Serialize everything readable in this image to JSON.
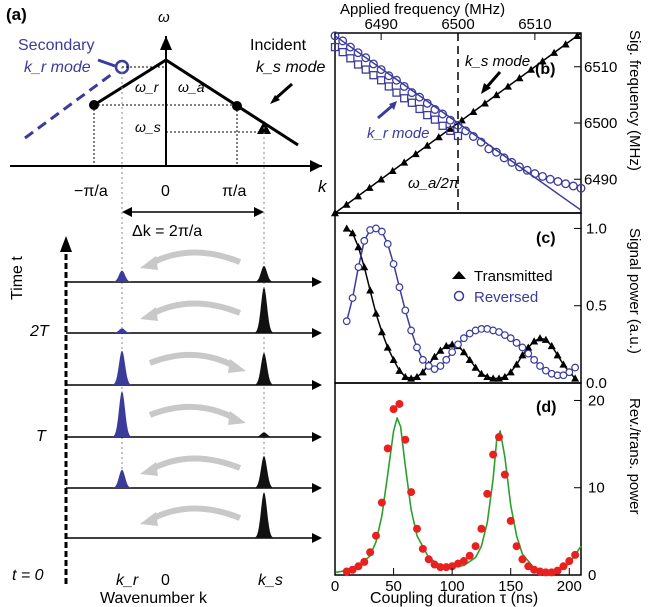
{
  "colors": {
    "blue": "#3b3b9c",
    "green": "#2ca02c",
    "red": "#e8201f",
    "black": "#000000",
    "gray_arrow": "#c8c8c8"
  },
  "panel_a": {
    "label": "(a)",
    "omega_axis": "ω",
    "k_axis": "k",
    "secondary_label_1": "Secondary",
    "secondary_label_2": "k_r mode",
    "incident_label_1": "Incident",
    "incident_label_2": "k_s mode",
    "omega_r": "ω_r",
    "omega_a": "ω_a",
    "omega_s": "ω_s",
    "tick_neg": "−π/a",
    "tick_zero": "0",
    "tick_pos": "π/a",
    "delta_k": "Δk = 2π/a",
    "time_axis": "Time t",
    "time_labels": [
      "2T",
      "T",
      "t = 0"
    ],
    "bottom_kr": "k_r",
    "bottom_zero": "0",
    "bottom_ks": "k_s",
    "bottom_axis": "Wavenumber k",
    "rows": [
      {
        "kr_amp": 0.25,
        "ks_amp": 0.35,
        "arrow": "left"
      },
      {
        "kr_amp": 0.1,
        "ks_amp": 1.0,
        "arrow": "left"
      },
      {
        "kr_amp": 0.75,
        "ks_amp": 0.7,
        "arrow": "right"
      },
      {
        "kr_amp": 1.0,
        "ks_amp": 0.1,
        "arrow": "right"
      },
      {
        "kr_amp": 0.4,
        "ks_amp": 0.7,
        "arrow": "left"
      },
      {
        "kr_amp": 0.0,
        "ks_amp": 1.0,
        "arrow": "left"
      }
    ]
  },
  "chart_data": [
    {
      "panel": "(b)",
      "type": "scatter",
      "top_xlabel": "Applied frequency (MHz)",
      "top_xticks": [
        6490,
        6500,
        6510
      ],
      "xlim": [
        6484,
        6516
      ],
      "ylabel": "Sig. frequency (MHz)",
      "yticks": [
        6490,
        6500,
        6510
      ],
      "ylim": [
        6484,
        6516
      ],
      "vline_x": 6500,
      "vline_label": "ω_a/2π",
      "annotations": [
        "k_s mode",
        "k_r mode"
      ],
      "series": [
        {
          "marker": "triangle",
          "color": "black",
          "x": [
            6484,
            6485.5,
            6487,
            6488.5,
            6490,
            6491.5,
            6493,
            6494.5,
            6496,
            6497.5,
            6499,
            6500.5,
            6502,
            6503.5,
            6505,
            6506.5,
            6508,
            6509.5,
            6511,
            6512.5,
            6514,
            6515.5
          ],
          "y": [
            6484,
            6485.5,
            6487,
            6488.5,
            6490,
            6491.5,
            6493,
            6494.5,
            6496,
            6497.5,
            6499,
            6500.5,
            6502,
            6503.5,
            6505,
            6506.5,
            6508,
            6509.5,
            6511,
            6512.5,
            6514,
            6515.5
          ]
        },
        {
          "marker": "square",
          "color": "blue",
          "x": [
            6484,
            6485,
            6486,
            6487,
            6488,
            6489,
            6490,
            6491,
            6492,
            6493,
            6494,
            6495,
            6496,
            6497,
            6498,
            6499,
            6500
          ],
          "y": [
            6513.5,
            6512.6,
            6511.5,
            6510.4,
            6509.5,
            6508.5,
            6507.6,
            6506.5,
            6505.4,
            6504.4,
            6503.6,
            6502.5,
            6501.4,
            6500.6,
            6499.5,
            6498.6,
            6497.7
          ]
        },
        {
          "marker": "circle",
          "color": "blue",
          "x": [
            6484,
            6485,
            6486,
            6487,
            6488,
            6489,
            6490,
            6491,
            6492,
            6493,
            6494,
            6495,
            6496,
            6497,
            6498,
            6499,
            6500,
            6501,
            6502,
            6503,
            6504,
            6505,
            6506,
            6507,
            6508,
            6509,
            6510,
            6511,
            6512,
            6513,
            6514,
            6515,
            6516
          ],
          "y": [
            6515.5,
            6514.6,
            6513.5,
            6512.5,
            6511.6,
            6510.5,
            6509.5,
            6508.4,
            6507.6,
            6506.5,
            6505.4,
            6504.6,
            6503.5,
            6502.4,
            6501.6,
            6500.5,
            6499.6,
            6498.6,
            6497.6,
            6496.6,
            6495.4,
            6494.8,
            6493.8,
            6493.0,
            6492.2,
            6491.6,
            6491.0,
            6490.5,
            6490.0,
            6489.6,
            6489.2,
            6488.8,
            6488.4
          ]
        }
      ]
    },
    {
      "panel": "(c)",
      "type": "line",
      "ylabel": "Signal power (a.u.)",
      "yticks": [
        0.0,
        0.5,
        1.0
      ],
      "ylim": [
        0,
        1.1
      ],
      "xlim": [
        0,
        210
      ],
      "legend_placement": "top-right",
      "series": [
        {
          "name": "Transmitted",
          "marker": "triangle",
          "color": "black",
          "x": [
            10,
            15,
            20,
            25,
            30,
            35,
            40,
            45,
            50,
            55,
            60,
            65,
            70,
            75,
            80,
            85,
            90,
            95,
            100,
            105,
            110,
            115,
            120,
            125,
            130,
            135,
            140,
            145,
            150,
            155,
            160,
            165,
            170,
            175,
            180,
            185,
            190,
            195,
            200,
            205
          ],
          "y": [
            1.0,
            0.97,
            0.88,
            0.75,
            0.6,
            0.45,
            0.33,
            0.23,
            0.15,
            0.08,
            0.04,
            0.03,
            0.04,
            0.07,
            0.12,
            0.17,
            0.21,
            0.24,
            0.25,
            0.24,
            0.2,
            0.15,
            0.1,
            0.06,
            0.04,
            0.03,
            0.03,
            0.04,
            0.07,
            0.12,
            0.18,
            0.23,
            0.27,
            0.29,
            0.28,
            0.24,
            0.18,
            0.12,
            0.07,
            0.03
          ]
        },
        {
          "name": "Reversed",
          "marker": "circle",
          "color": "blue",
          "x": [
            10,
            15,
            20,
            25,
            30,
            35,
            40,
            45,
            50,
            55,
            60,
            65,
            70,
            75,
            80,
            85,
            90,
            95,
            100,
            105,
            110,
            115,
            120,
            125,
            130,
            135,
            140,
            145,
            150,
            155,
            160,
            165,
            170,
            175,
            180,
            185,
            190,
            195,
            200,
            205
          ],
          "y": [
            0.4,
            0.55,
            0.75,
            0.92,
            0.99,
            1.0,
            0.98,
            0.9,
            0.77,
            0.62,
            0.47,
            0.34,
            0.23,
            0.15,
            0.11,
            0.09,
            0.11,
            0.15,
            0.2,
            0.25,
            0.29,
            0.32,
            0.34,
            0.35,
            0.35,
            0.34,
            0.33,
            0.31,
            0.29,
            0.26,
            0.23,
            0.19,
            0.15,
            0.11,
            0.08,
            0.06,
            0.05,
            0.05,
            0.07,
            0.1
          ]
        }
      ]
    },
    {
      "panel": "(d)",
      "type": "scatter",
      "xlabel": "Coupling duration τ (ns)",
      "xticks": [
        0,
        50,
        100,
        150,
        200
      ],
      "xlim": [
        0,
        210
      ],
      "ylabel": "Rev./trans. power",
      "yticks": [
        0,
        10,
        20
      ],
      "ylim": [
        0,
        22
      ],
      "series": [
        {
          "name": "data",
          "marker": "circle",
          "color": "red",
          "x": [
            10,
            15,
            20,
            25,
            30,
            35,
            40,
            45,
            50,
            55,
            60,
            65,
            70,
            75,
            80,
            85,
            90,
            95,
            100,
            105,
            110,
            115,
            120,
            125,
            130,
            135,
            140,
            145,
            150,
            155,
            160,
            165,
            170,
            175,
            180,
            185,
            190,
            195,
            200,
            205
          ],
          "y": [
            0.4,
            0.6,
            1.0,
            1.5,
            2.6,
            4.5,
            8.3,
            14.5,
            19.0,
            19.6,
            15.5,
            9.5,
            5.3,
            3.0,
            1.8,
            1.2,
            0.9,
            0.9,
            1.0,
            1.3,
            1.6,
            2.2,
            3.3,
            5.3,
            9.3,
            13.8,
            15.8,
            11.5,
            6.2,
            3.3,
            1.8,
            1.0,
            0.6,
            0.4,
            0.3,
            0.3,
            0.5,
            1.0,
            1.6,
            2.3
          ]
        },
        {
          "name": "theory",
          "marker": "line",
          "color": "green",
          "x": [
            0,
            10,
            20,
            30,
            35,
            40,
            45,
            50,
            53,
            56,
            60,
            65,
            70,
            80,
            90,
            100,
            110,
            120,
            125,
            130,
            135,
            138,
            141,
            145,
            150,
            155,
            160,
            170,
            180,
            190,
            200,
            210
          ],
          "y": [
            0.3,
            0.5,
            1.0,
            2.2,
            3.8,
            6.8,
            11.5,
            16.5,
            18.0,
            17.0,
            12.5,
            7.5,
            4.5,
            2.0,
            1.1,
            0.9,
            1.1,
            2.0,
            3.3,
            6.0,
            11.0,
            15.5,
            16.5,
            13.5,
            8.0,
            4.5,
            2.4,
            0.8,
            0.3,
            0.4,
            1.3,
            3.3
          ]
        }
      ]
    }
  ]
}
